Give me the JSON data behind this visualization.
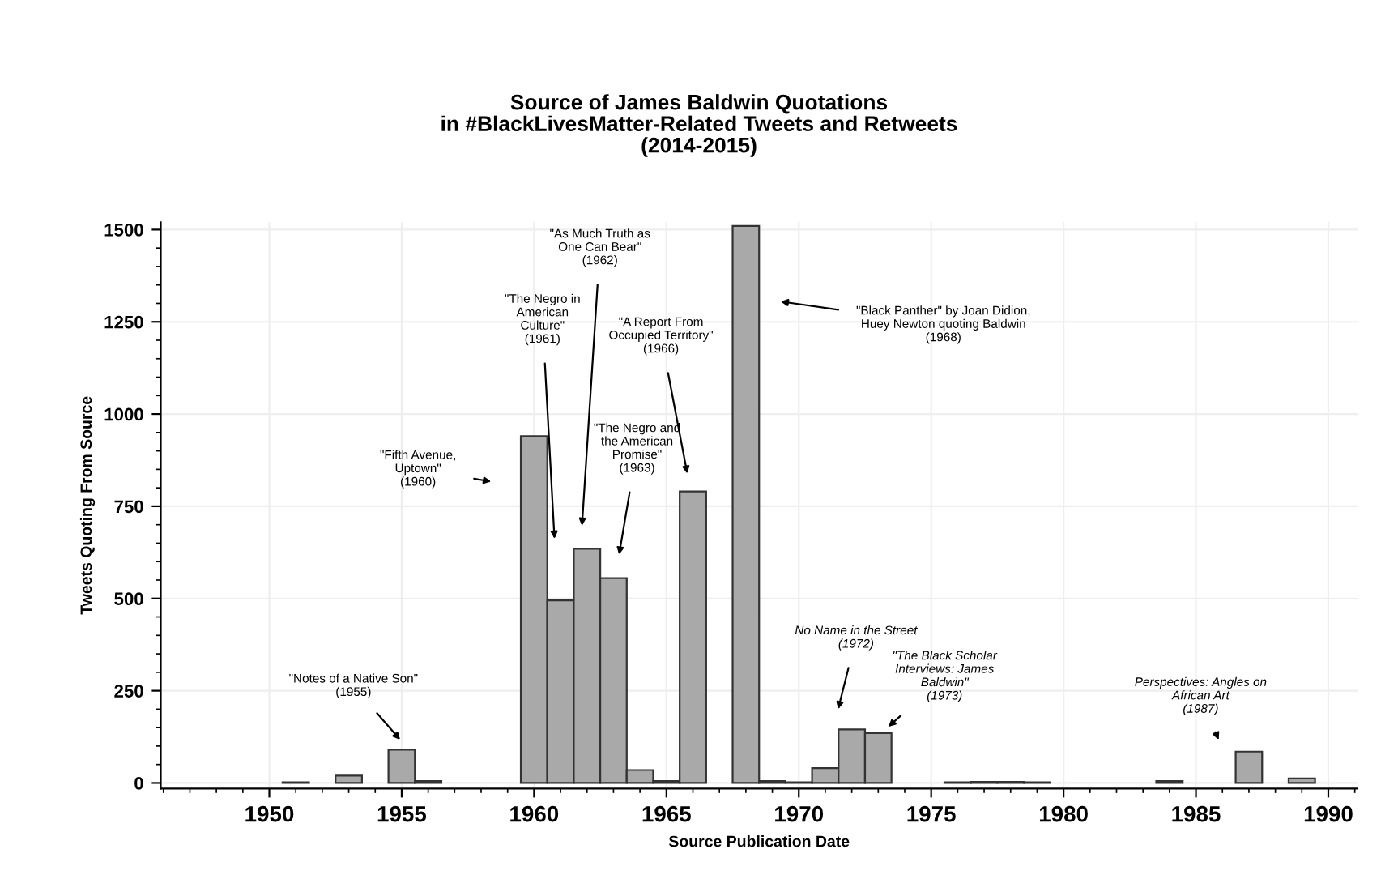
{
  "chart_data": {
    "type": "bar",
    "title": "Source of James Baldwin Quotations\nin #BlackLivesMatter-Related Tweets and Retweets\n(2014-2015)",
    "xlabel": "Source Publication Date",
    "ylabel": "Tweets Quoting From Source",
    "x": [
      1951,
      1953,
      1955,
      1956,
      1960,
      1961,
      1962,
      1963,
      1964,
      1965,
      1966,
      1968,
      1969,
      1970,
      1971,
      1972,
      1973,
      1976,
      1977,
      1978,
      1979,
      1984,
      1987,
      1989
    ],
    "values": [
      2,
      20,
      90,
      5,
      940,
      495,
      635,
      555,
      35,
      5,
      790,
      1510,
      5,
      2,
      40,
      145,
      135,
      2,
      3,
      3,
      2,
      5,
      85,
      12
    ],
    "color": "#a9a9a9",
    "xlim": [
      1945.9,
      1991.1
    ],
    "xticks": [
      1950,
      1955,
      1960,
      1965,
      1970,
      1975,
      1980,
      1985,
      1990
    ],
    "ylim": [
      -15,
      1520
    ],
    "yticks": [
      0,
      250,
      500,
      750,
      1000,
      1250,
      1500
    ],
    "grid": true,
    "annotations": [
      "\"Notes of a Native Son\"\n(1955)",
      "\"Fifth Avenue,\nUptown\"\n(1960)",
      "\"The Negro in\nAmerican\nCulture\"\n(1961)",
      "\"As Much Truth as\nOne Can Bear\"\n(1962)",
      "\"The Negro and\nthe American\nPromise\"\n(1963)",
      "\"A Report From\nOccupied Territory\"\n(1966)",
      "\"Black Panther\" by Joan Didion,\nHuey Newton quoting Baldwin\n(1968)",
      "No Name in the Street\n(1972)",
      "\"The Black Scholar\nInterviews: James\nBaldwin\"\n(1973)",
      "Perspectives: Angles on\nAfrican Art\n(1987)"
    ]
  }
}
